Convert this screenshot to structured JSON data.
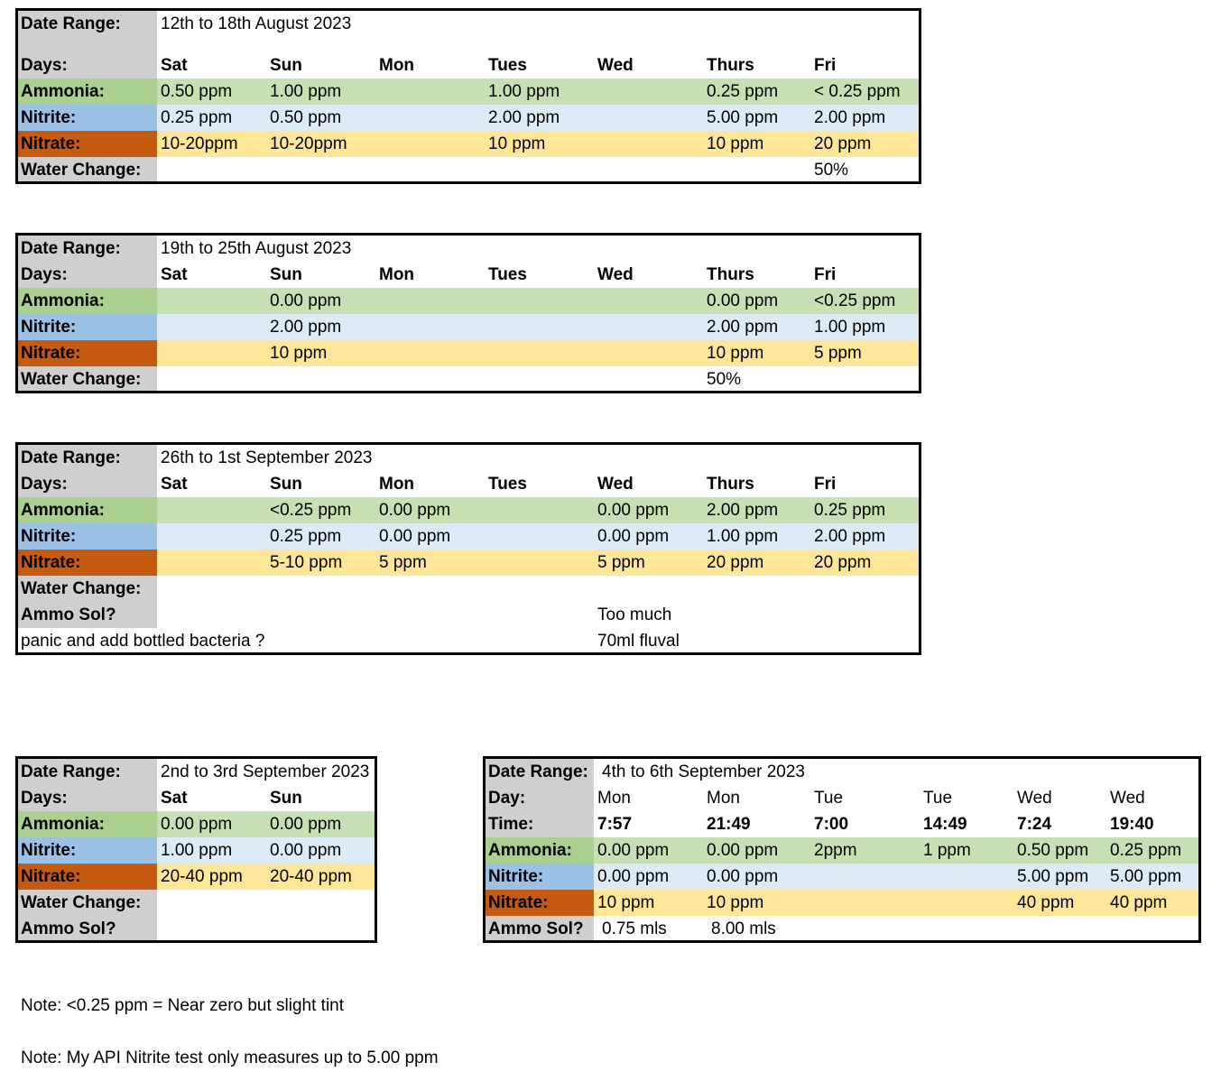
{
  "week1": {
    "label_date": "Date Range:",
    "date_range": "12th to 18th August 2023",
    "label_days": "Days:",
    "days": [
      "Sat",
      "Sun",
      "Mon",
      "Tues",
      "Wed",
      "Thurs",
      "Fri"
    ],
    "label_ammonia": "Ammonia:",
    "ammonia": [
      "0.50 ppm",
      "1.00 ppm",
      "",
      "1.00 ppm",
      "",
      "0.25 ppm",
      "< 0.25 ppm"
    ],
    "label_nitrite": "Nitrite:",
    "nitrite": [
      "0.25 ppm",
      "0.50 ppm",
      "",
      "2.00 ppm",
      "",
      "5.00 ppm",
      "2.00 ppm"
    ],
    "label_nitrate": "Nitrate:",
    "nitrate": [
      "10-20ppm",
      "10-20ppm",
      "",
      "10 ppm",
      "",
      "10 ppm",
      "20 ppm"
    ],
    "label_water": "Water Change:",
    "water": [
      "",
      "",
      "",
      "",
      "",
      "",
      "50%"
    ]
  },
  "week2": {
    "label_date": "Date Range:",
    "date_range": "19th to 25th August 2023",
    "label_days": "Days:",
    "days": [
      "Sat",
      "Sun",
      "Mon",
      "Tues",
      "Wed",
      "Thurs",
      "Fri"
    ],
    "label_ammonia": "Ammonia:",
    "ammonia": [
      "",
      "0.00 ppm",
      "",
      "",
      "",
      "0.00 ppm",
      "<0.25 ppm"
    ],
    "label_nitrite": "Nitrite:",
    "nitrite": [
      "",
      "2.00 ppm",
      "",
      "",
      "",
      "2.00 ppm",
      "1.00 ppm"
    ],
    "label_nitrate": "Nitrate:",
    "nitrate": [
      "",
      "10 ppm",
      "",
      "",
      "",
      "10 ppm",
      "5 ppm"
    ],
    "label_water": "Water Change:",
    "water": [
      "",
      "",
      "",
      "",
      "",
      "50%",
      ""
    ]
  },
  "week3": {
    "label_date": "Date Range:",
    "date_range": "26th to 1st September 2023",
    "label_days": "Days:",
    "days": [
      "Sat",
      "Sun",
      "Mon",
      "Tues",
      "Wed",
      "Thurs",
      "Fri"
    ],
    "label_ammonia": "Ammonia:",
    "ammonia": [
      "",
      "<0.25 ppm",
      "0.00 ppm",
      "",
      "0.00 ppm",
      "2.00 ppm",
      "0.25 ppm"
    ],
    "label_nitrite": "Nitrite:",
    "nitrite": [
      "",
      "0.25 ppm",
      "0.00 ppm",
      "",
      "0.00 ppm",
      "1.00 ppm",
      "2.00 ppm"
    ],
    "label_nitrate": "Nitrate:",
    "nitrate": [
      "",
      "5-10 ppm",
      "5 ppm",
      "",
      "5 ppm",
      "20 ppm",
      "20 ppm"
    ],
    "label_water": "Water Change:",
    "label_ammo": "Ammo Sol?",
    "ammo_wed": "Too much",
    "panic_text": "panic and add bottled bacteria ?",
    "panic_wed": "70ml fluval"
  },
  "week4": {
    "label_date": "Date Range:",
    "date_range": "2nd to 3rd September 2023",
    "label_days": "Days:",
    "days": [
      "Sat",
      "Sun"
    ],
    "label_ammonia": "Ammonia:",
    "ammonia": [
      "0.00 ppm",
      "0.00 ppm"
    ],
    "label_nitrite": "Nitrite:",
    "nitrite": [
      "1.00 ppm",
      "0.00 ppm"
    ],
    "label_nitrate": "Nitrate:",
    "nitrate": [
      "20-40 ppm",
      "20-40 ppm"
    ],
    "label_water": "Water Change:",
    "label_ammo": "Ammo Sol?"
  },
  "week5": {
    "label_date": "Date Range:",
    "date_range": "4th to 6th September 2023",
    "label_day": "Day:",
    "days": [
      "Mon",
      "Mon",
      "Tue",
      "Tue",
      "Wed",
      "Wed"
    ],
    "label_time": "Time:",
    "times": [
      "7:57",
      "21:49",
      "7:00",
      "14:49",
      "7:24",
      "19:40"
    ],
    "label_ammonia": "Ammonia:",
    "ammonia": [
      "0.00 ppm",
      "0.00 ppm",
      "2ppm",
      "1 ppm",
      "0.50 ppm",
      "0.25 ppm"
    ],
    "label_nitrite": "Nitrite:",
    "nitrite": [
      "0.00 ppm",
      "0.00 ppm",
      "",
      "",
      "5.00 ppm",
      "5.00 ppm"
    ],
    "label_nitrate": "Nitrate:",
    "nitrate": [
      "10 ppm",
      "10 ppm",
      "",
      "",
      "40 ppm",
      "40 ppm"
    ],
    "label_ammo": "Ammo Sol?",
    "ammo": [
      "0.75 mls",
      "8.00 mls",
      "",
      "",
      "",
      ""
    ]
  },
  "notes": [
    "Note:  <0.25 ppm = Near zero but slight tint",
    "Note:  My API Nitrite test only measures up to 5.00 ppm"
  ]
}
